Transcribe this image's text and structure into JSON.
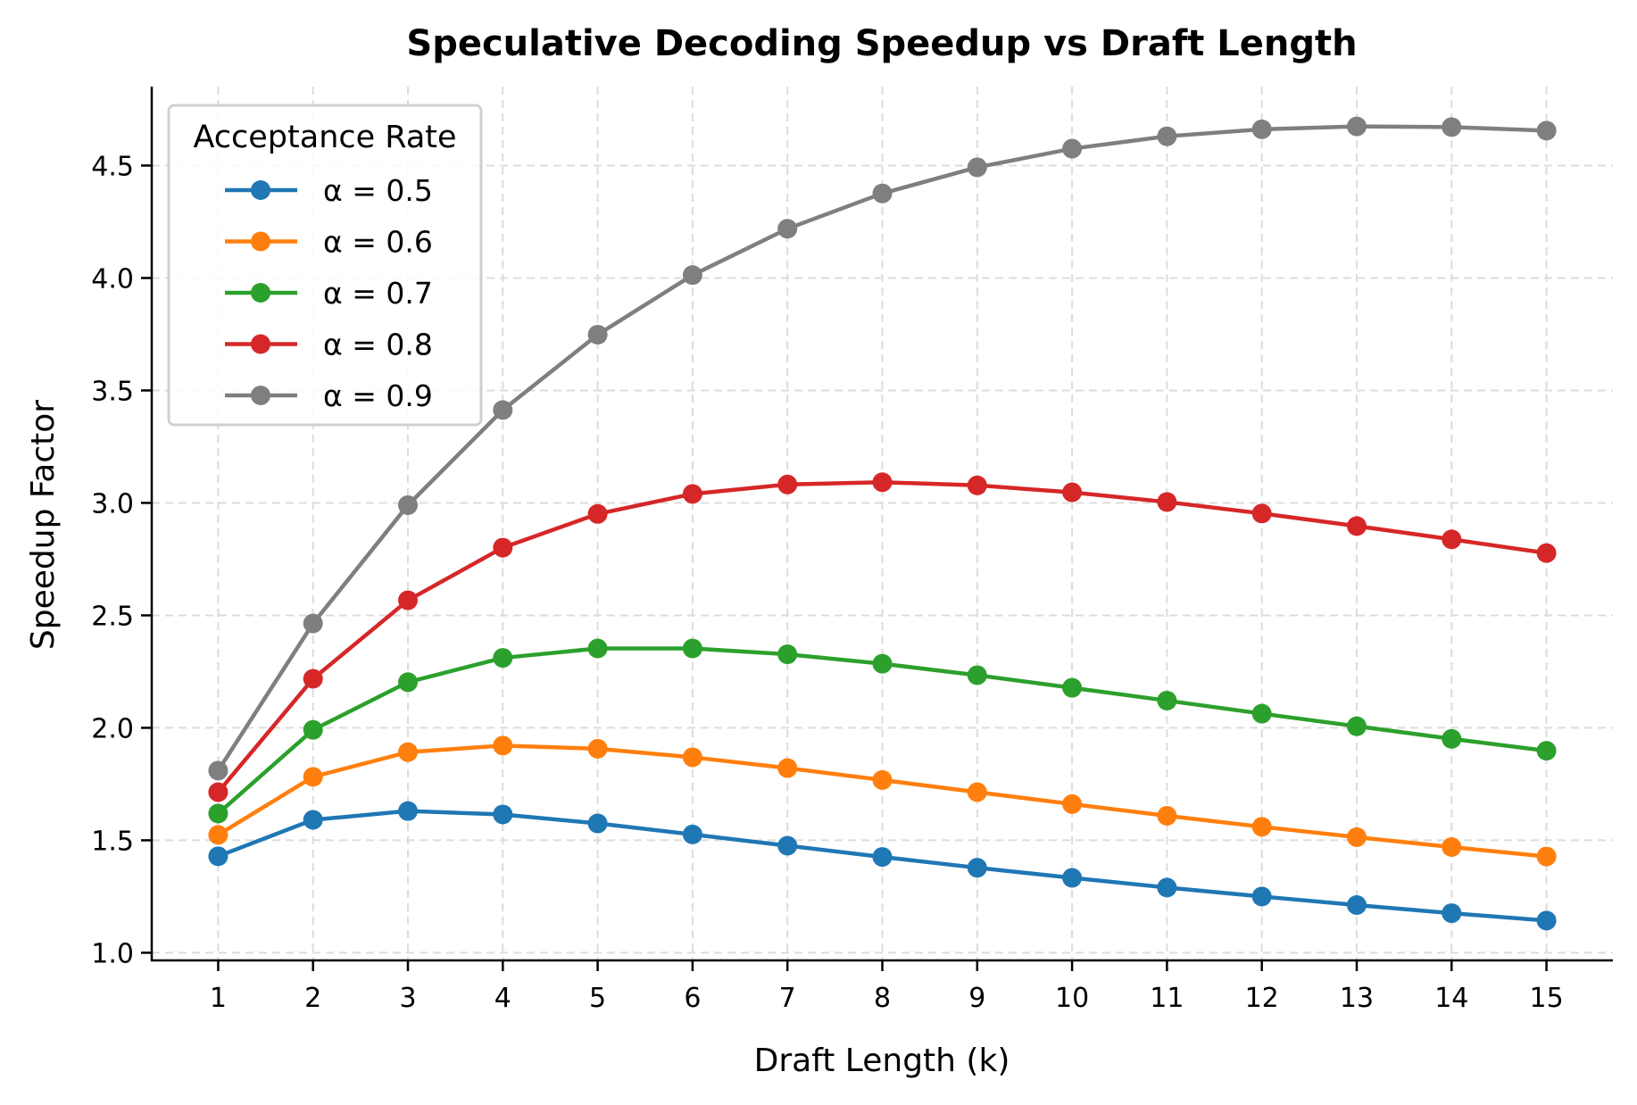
{
  "chart_data": {
    "type": "line",
    "title": "Speculative Decoding Speedup vs Draft Length",
    "xlabel": "Draft Length (k)",
    "ylabel": "Speedup Factor",
    "x": [
      1,
      2,
      3,
      4,
      5,
      6,
      7,
      8,
      9,
      10,
      11,
      12,
      13,
      14,
      15
    ],
    "xticks": [
      "1",
      "2",
      "3",
      "4",
      "5",
      "6",
      "7",
      "8",
      "9",
      "10",
      "11",
      "12",
      "13",
      "14",
      "15"
    ],
    "yticks": [
      "1.0",
      "1.5",
      "2.0",
      "2.5",
      "3.0",
      "3.5",
      "4.0",
      "4.5"
    ],
    "xlim": [
      0.3,
      15.7
    ],
    "ylim": [
      0.966,
      4.851
    ],
    "grid": true,
    "legend": {
      "title": "Acceptance Rate",
      "placement": "upper-left"
    },
    "series": [
      {
        "name": "α = 0.5",
        "color": "#1f77b4",
        "values": [
          1.429,
          1.591,
          1.63,
          1.615,
          1.575,
          1.526,
          1.476,
          1.426,
          1.378,
          1.333,
          1.29,
          1.25,
          1.212,
          1.176,
          1.143
        ]
      },
      {
        "name": "α = 0.6",
        "color": "#ff7f0e",
        "values": [
          1.524,
          1.782,
          1.892,
          1.921,
          1.907,
          1.869,
          1.821,
          1.768,
          1.714,
          1.661,
          1.609,
          1.56,
          1.514,
          1.47,
          1.428
        ]
      },
      {
        "name": "α = 0.7",
        "color": "#2ca02c",
        "values": [
          1.619,
          1.991,
          2.203,
          2.311,
          2.353,
          2.353,
          2.327,
          2.285,
          2.234,
          2.178,
          2.121,
          2.063,
          2.007,
          1.951,
          1.898
        ]
      },
      {
        "name": "α = 0.8",
        "color": "#d62728",
        "values": [
          1.714,
          2.218,
          2.567,
          2.801,
          2.951,
          3.04,
          3.082,
          3.092,
          3.078,
          3.047,
          3.004,
          2.953,
          2.897,
          2.838,
          2.777
        ]
      },
      {
        "name": "α = 0.9",
        "color": "#7f7f7f",
        "values": [
          1.81,
          2.464,
          2.99,
          3.413,
          3.748,
          4.013,
          4.219,
          4.376,
          4.492,
          4.575,
          4.63,
          4.661,
          4.674,
          4.671,
          4.655
        ]
      }
    ]
  }
}
